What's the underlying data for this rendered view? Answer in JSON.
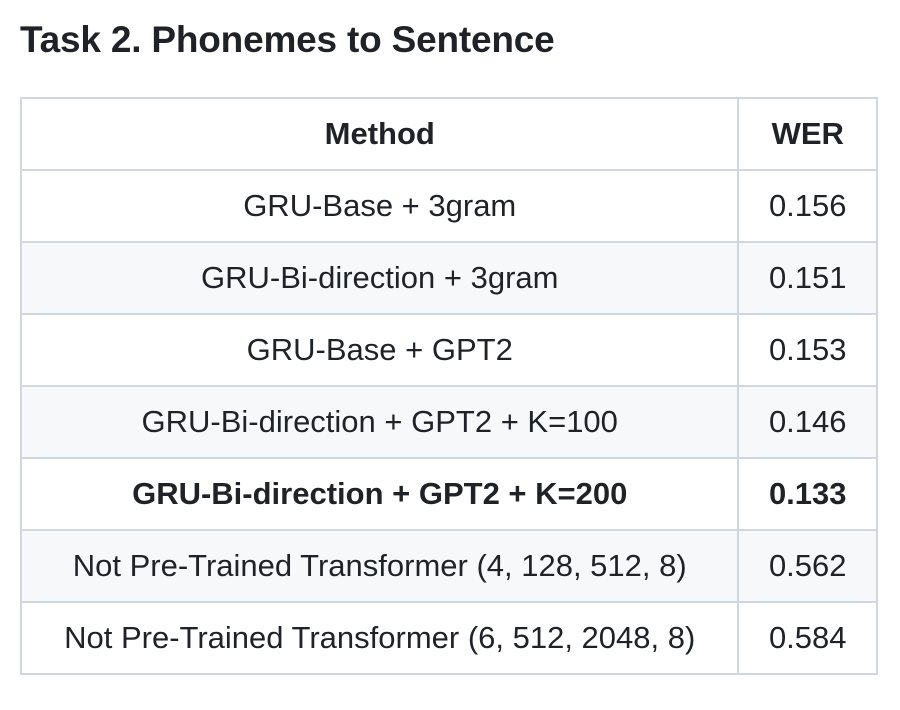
{
  "heading": "Task 2. Phonemes to Sentence",
  "table": {
    "headers": {
      "method": "Method",
      "wer": "WER"
    },
    "rows": [
      {
        "method": "GRU-Base + 3gram",
        "wer": "0.156",
        "bold": false
      },
      {
        "method": "GRU-Bi-direction + 3gram",
        "wer": "0.151",
        "bold": false
      },
      {
        "method": "GRU-Base + GPT2",
        "wer": "0.153",
        "bold": false
      },
      {
        "method": "GRU-Bi-direction + GPT2 + K=100",
        "wer": "0.146",
        "bold": false
      },
      {
        "method": "GRU-Bi-direction + GPT2 + K=200",
        "wer": "0.133",
        "bold": true
      },
      {
        "method": "Not Pre-Trained Transformer (4, 128, 512, 8)",
        "wer": "0.562",
        "bold": false
      },
      {
        "method": "Not Pre-Trained Transformer (6, 512, 2048, 8)",
        "wer": "0.584",
        "bold": false
      }
    ]
  },
  "colors": {
    "text": "#1f2328",
    "border": "#d0d7de",
    "stripe": "#f6f8fa"
  }
}
